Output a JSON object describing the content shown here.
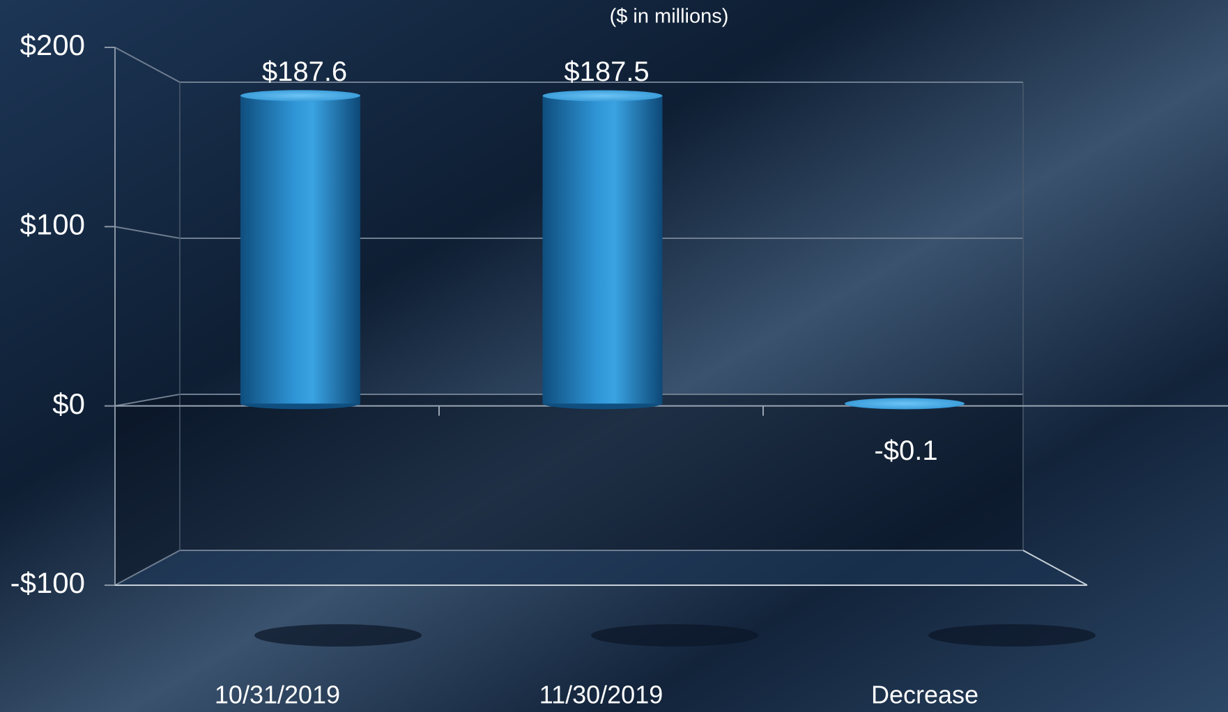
{
  "chart_data": {
    "type": "bar3d",
    "subtitle": "($ in millions)",
    "categories": [
      "10/31/2019",
      "11/30/2019",
      "Decrease"
    ],
    "values": [
      187.6,
      187.5,
      -0.1
    ],
    "value_labels": [
      "$187.6",
      "$187.5",
      "-$0.1"
    ],
    "color": "#2f8fd0",
    "ylim": [
      -100,
      200
    ],
    "yticks": [
      {
        "value": -100,
        "label": "-$100"
      },
      {
        "value": 0,
        "label": "$0"
      },
      {
        "value": 100,
        "label": "$100"
      },
      {
        "value": 200,
        "label": "$200"
      }
    ],
    "grid": true
  }
}
